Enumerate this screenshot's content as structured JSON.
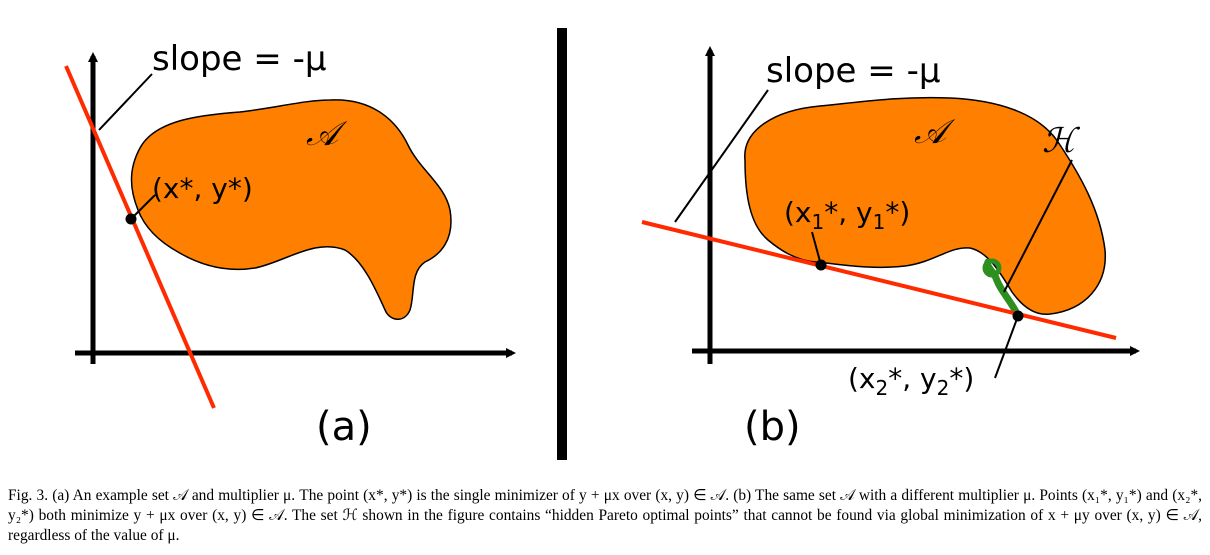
{
  "panel_a": {
    "slope_label": "slope = -μ",
    "set_label": "𝒜",
    "point_label": "(x*, y*)",
    "panel_label": "(a)"
  },
  "panel_b": {
    "slope_label": "slope = -μ",
    "set_label": "𝒜",
    "hidden_set_label": "ℋ",
    "point1": {
      "prefix": "(x",
      "sub_x": "1",
      "mid": "*, y",
      "sub_y": "1",
      "suffix": "*)"
    },
    "point2": {
      "prefix": "(x",
      "sub_x": "2",
      "mid": "*, y",
      "sub_y": "2",
      "suffix": "*)"
    },
    "panel_label": "(b)"
  },
  "colors": {
    "set_fill": "#ff7f00",
    "line": "#ff2a00",
    "hidden_set": "#2d8f1f",
    "axis": "#000000",
    "divider": "#000000"
  },
  "caption": {
    "text": "Fig. 3.  (a) An example set 𝒜 and multiplier μ. The point (x*, y*) is the single minimizer of y + μx over (x, y) ∈ 𝒜. (b) The same set 𝒜 with a different multiplier μ. Points (x₁*, y₁*) and (x₂*, y₂*) both minimize y + μx over (x, y) ∈ 𝒜. The set ℋ shown in the figure contains “hidden Pareto optimal points” that cannot be found via global minimization of x + μy over (x, y) ∈ 𝒜, regardless of the value of μ."
  }
}
